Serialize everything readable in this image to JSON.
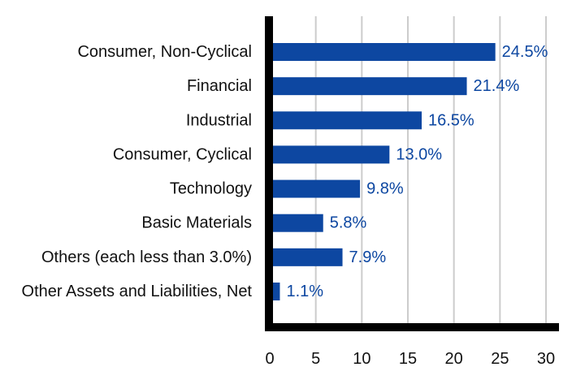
{
  "chart_data": {
    "type": "bar",
    "orientation": "horizontal",
    "title": "",
    "xlabel": "",
    "ylabel": "",
    "categories": [
      "Consumer, Non-Cyclical",
      "Financial",
      "Industrial",
      "Consumer, Cyclical",
      "Technology",
      "Basic Materials",
      "Others (each less than 3.0%)",
      "Other Assets and Liabilities, Net"
    ],
    "values": [
      24.5,
      21.4,
      16.5,
      13.0,
      9.8,
      5.8,
      7.9,
      1.1
    ],
    "value_labels": [
      "24.5%",
      "21.4%",
      "16.5%",
      "13.0%",
      "9.8%",
      "5.8%",
      "7.9%",
      "1.1%"
    ],
    "xlim": [
      0,
      30
    ],
    "xticks": [
      0,
      5,
      10,
      15,
      20,
      25,
      30
    ],
    "xtick_labels": [
      "0",
      "5",
      "10",
      "15",
      "20",
      "25",
      "30"
    ],
    "grid": "vertical",
    "legend": "none",
    "colors": {
      "bar": "#0d47a1",
      "value_label": "#0d47a1",
      "grid": "#cccccc",
      "axis": "#000000"
    }
  }
}
